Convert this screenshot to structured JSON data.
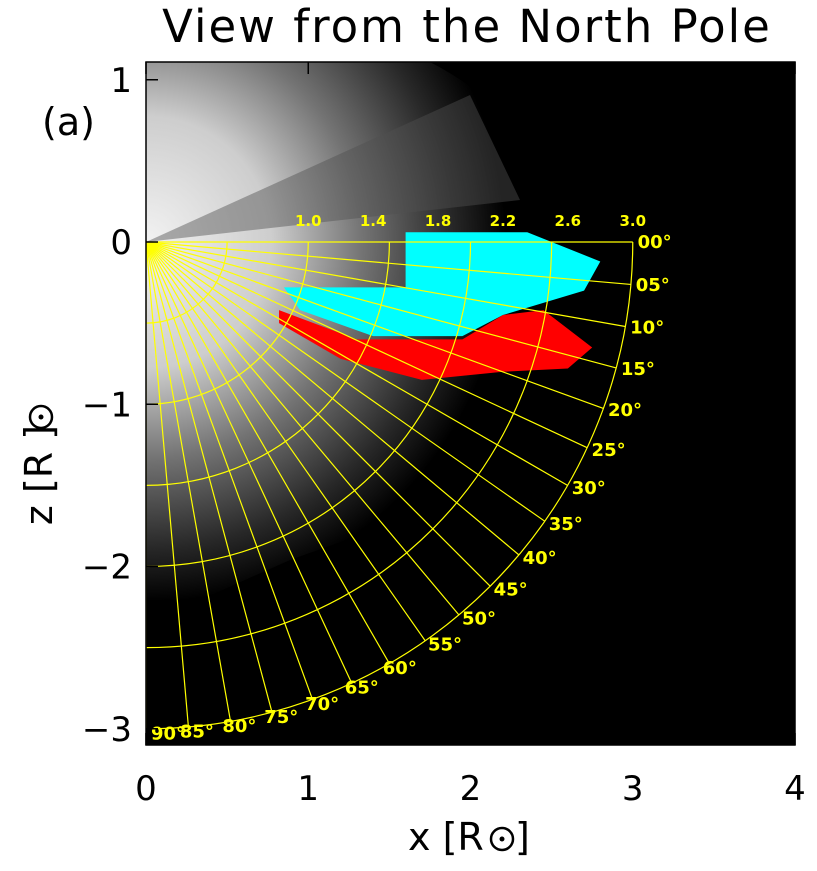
{
  "chart_data": {
    "type": "polar-grid-overlay",
    "title": "View from the North Pole",
    "panel_label": "(a)",
    "xlabel": "x [R",
    "ylabel": "z [R",
    "unit_symbol": "⊙",
    "xlim": [
      0,
      4
    ],
    "ylim": [
      -3,
      1.1
    ],
    "x_ticks": [
      "0",
      "1",
      "2",
      "3",
      "4"
    ],
    "y_ticks": [
      "1",
      "0",
      "−1",
      "−2",
      "−3"
    ],
    "y_tick_values": [
      1,
      0,
      -1,
      -2,
      -3
    ],
    "x_tick_values": [
      0,
      1,
      2,
      3,
      4
    ],
    "grid_color": "#ffff00",
    "radial_labels": [
      "1.0",
      "1.4",
      "1.8",
      "2.2",
      "2.6",
      "3.0"
    ],
    "radial_values": [
      1.0,
      1.4,
      1.8,
      2.2,
      2.6,
      3.0
    ],
    "angle_labels": [
      "00°",
      "05°",
      "10°",
      "15°",
      "20°",
      "25°",
      "30°",
      "35°",
      "40°",
      "45°",
      "50°",
      "55°",
      "60°",
      "65°",
      "70°",
      "75°",
      "80°",
      "85°",
      "90°"
    ],
    "angle_values": [
      0,
      5,
      10,
      15,
      20,
      25,
      30,
      35,
      40,
      45,
      50,
      55,
      60,
      65,
      70,
      75,
      80,
      85,
      90
    ],
    "regions": [
      {
        "color": "#00ffff",
        "points": [
          [
            1.6,
            0.06
          ],
          [
            2.35,
            0.06
          ],
          [
            2.8,
            -0.12
          ],
          [
            2.7,
            -0.3
          ],
          [
            2.2,
            -0.45
          ],
          [
            1.95,
            -0.58
          ],
          [
            1.4,
            -0.58
          ],
          [
            0.95,
            -0.42
          ],
          [
            0.85,
            -0.28
          ],
          [
            1.6,
            -0.28
          ],
          [
            1.6,
            0.06
          ]
        ]
      },
      {
        "color": "#ff0000",
        "points": [
          [
            0.82,
            -0.42
          ],
          [
            1.3,
            -0.6
          ],
          [
            1.95,
            -0.6
          ],
          [
            2.2,
            -0.45
          ],
          [
            2.45,
            -0.42
          ],
          [
            2.75,
            -0.65
          ],
          [
            2.6,
            -0.78
          ],
          [
            2.2,
            -0.8
          ],
          [
            1.7,
            -0.85
          ],
          [
            1.2,
            -0.72
          ],
          [
            0.82,
            -0.5
          ]
        ]
      }
    ]
  }
}
